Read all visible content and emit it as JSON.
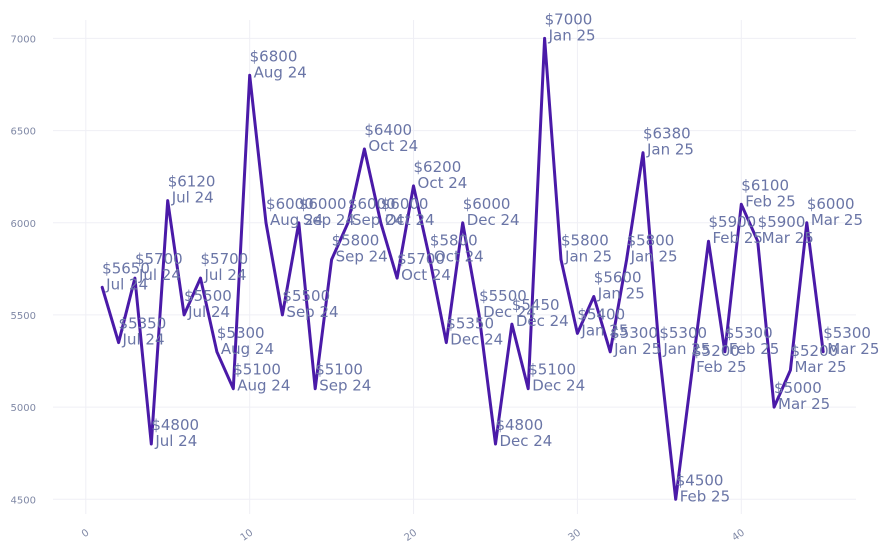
{
  "chart_data": {
    "type": "line",
    "title": "",
    "xlabel": "",
    "ylabel": "",
    "xlim": [
      -2,
      47
    ],
    "ylim": [
      4420,
      7100
    ],
    "grid": true,
    "color": "#4a1aa8",
    "x_ticks": [
      "0",
      "10",
      "20",
      "30",
      "40"
    ],
    "x_tick_values": [
      0,
      10,
      20,
      30,
      40
    ],
    "y_ticks": [
      "4500",
      "5000",
      "5500",
      "6000",
      "6500",
      "7000"
    ],
    "y_tick_values": [
      4500,
      5000,
      5500,
      6000,
      6500,
      7000
    ],
    "points": [
      {
        "x": 1,
        "y": 5650,
        "price": "$5650",
        "month": "Jul 24"
      },
      {
        "x": 2,
        "y": 5350,
        "price": "$5350",
        "month": "Jul 24"
      },
      {
        "x": 3,
        "y": 5700,
        "price": "$5700",
        "month": "Jul 24"
      },
      {
        "x": 4,
        "y": 4800,
        "price": "$4800",
        "month": "Jul 24"
      },
      {
        "x": 5,
        "y": 6120,
        "price": "$6120",
        "month": "Jul 24"
      },
      {
        "x": 6,
        "y": 5500,
        "price": "$5500",
        "month": "Jul 24"
      },
      {
        "x": 7,
        "y": 5700,
        "price": "$5700",
        "month": "Jul 24"
      },
      {
        "x": 8,
        "y": 5300,
        "price": "$5300",
        "month": "Aug 24"
      },
      {
        "x": 9,
        "y": 5100,
        "price": "$5100",
        "month": "Aug 24"
      },
      {
        "x": 10,
        "y": 6800,
        "price": "$6800",
        "month": "Aug 24"
      },
      {
        "x": 11,
        "y": 6000,
        "price": "$6000",
        "month": "Aug 24"
      },
      {
        "x": 12,
        "y": 5500,
        "price": "$5500",
        "month": "Sep 24"
      },
      {
        "x": 13,
        "y": 6000,
        "price": "$6000",
        "month": "Sep 24"
      },
      {
        "x": 14,
        "y": 5100,
        "price": "$5100",
        "month": "Sep 24"
      },
      {
        "x": 15,
        "y": 5800,
        "price": "$5800",
        "month": "Sep 24"
      },
      {
        "x": 16,
        "y": 6000,
        "price": "$6000",
        "month": "Sep 24"
      },
      {
        "x": 17,
        "y": 6400,
        "price": "$6400",
        "month": "Oct 24"
      },
      {
        "x": 18,
        "y": 6000,
        "price": "$6000",
        "month": "Oct 24"
      },
      {
        "x": 19,
        "y": 5700,
        "price": "$5700",
        "month": "Oct 24"
      },
      {
        "x": 20,
        "y": 6200,
        "price": "$6200",
        "month": "Oct 24"
      },
      {
        "x": 21,
        "y": 5800,
        "price": "$5800",
        "month": "Oct 24"
      },
      {
        "x": 22,
        "y": 5350,
        "price": "$5350",
        "month": "Dec 24"
      },
      {
        "x": 23,
        "y": 6000,
        "price": "$6000",
        "month": "Dec 24"
      },
      {
        "x": 24,
        "y": 5500,
        "price": "$5500",
        "month": "Dec 24"
      },
      {
        "x": 25,
        "y": 4800,
        "price": "$4800",
        "month": "Dec 24"
      },
      {
        "x": 26,
        "y": 5450,
        "price": "$5450",
        "month": "Dec 24"
      },
      {
        "x": 27,
        "y": 5100,
        "price": "$5100",
        "month": "Dec 24"
      },
      {
        "x": 28,
        "y": 7000,
        "price": "$7000",
        "month": "Jan 25"
      },
      {
        "x": 29,
        "y": 5800,
        "price": "$5800",
        "month": "Jan 25"
      },
      {
        "x": 30,
        "y": 5400,
        "price": "$5400",
        "month": "Jan 25"
      },
      {
        "x": 31,
        "y": 5600,
        "price": "$5600",
        "month": "Jan 25"
      },
      {
        "x": 32,
        "y": 5300,
        "price": "$5300",
        "month": "Jan 25"
      },
      {
        "x": 33,
        "y": 5800,
        "price": "$5800",
        "month": "Jan 25"
      },
      {
        "x": 34,
        "y": 6380,
        "price": "$6380",
        "month": "Jan 25"
      },
      {
        "x": 35,
        "y": 5300,
        "price": "$5300",
        "month": "Jan 25"
      },
      {
        "x": 36,
        "y": 4500,
        "price": "$4500",
        "month": "Feb 25"
      },
      {
        "x": 37,
        "y": 5200,
        "price": "$5200",
        "month": "Feb 25"
      },
      {
        "x": 38,
        "y": 5900,
        "price": "$5900",
        "month": "Feb 25"
      },
      {
        "x": 39,
        "y": 5300,
        "price": "$5300",
        "month": "Feb 25"
      },
      {
        "x": 40,
        "y": 6100,
        "price": "$6100",
        "month": "Feb 25"
      },
      {
        "x": 41,
        "y": 5900,
        "price": "$5900",
        "month": "Mar 25"
      },
      {
        "x": 42,
        "y": 5000,
        "price": "$5000",
        "month": "Mar 25"
      },
      {
        "x": 43,
        "y": 5200,
        "price": "$5200",
        "month": "Mar 25"
      },
      {
        "x": 44,
        "y": 6000,
        "price": "$6000",
        "month": "Mar 25"
      },
      {
        "x": 45,
        "y": 5300,
        "price": "$5300",
        "month": "Mar 25"
      }
    ]
  }
}
